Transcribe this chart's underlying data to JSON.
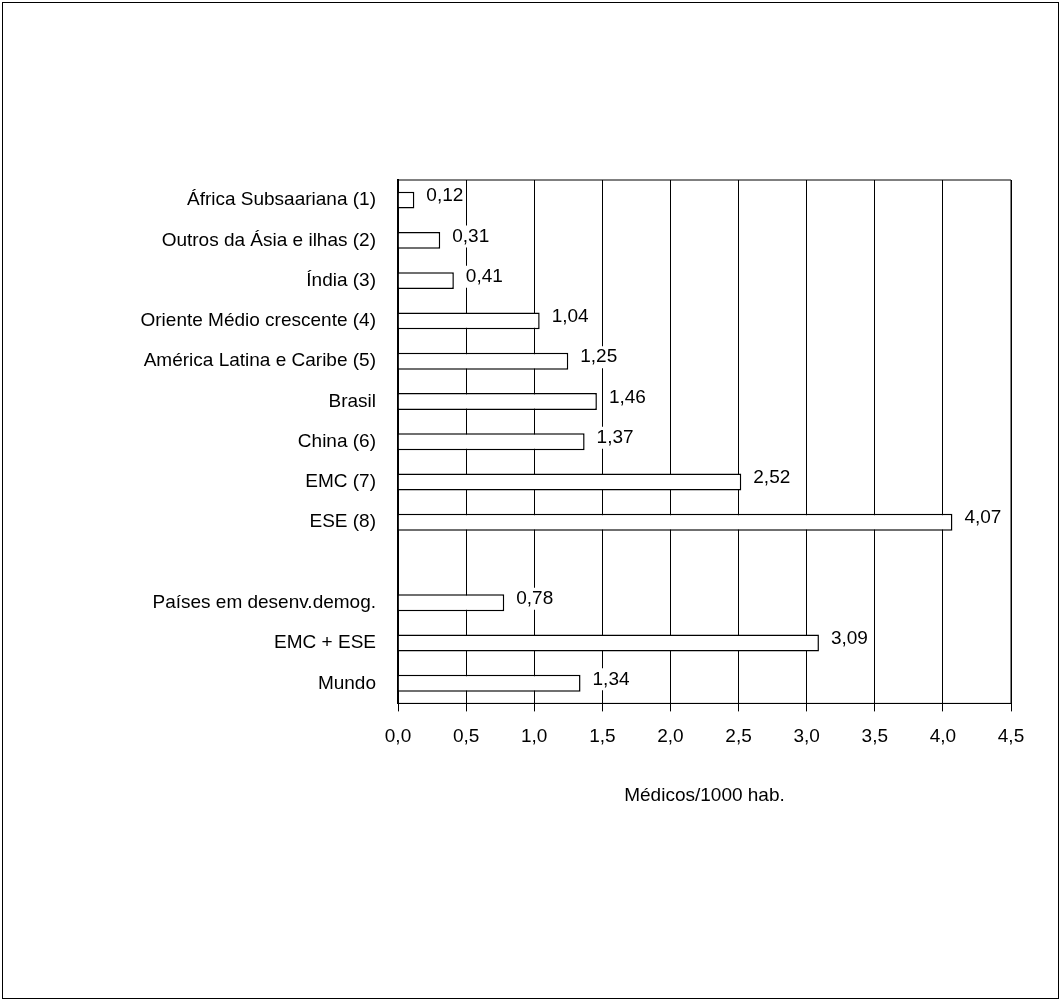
{
  "chart_data": {
    "type": "bar",
    "orientation": "horizontal",
    "xlabel": "Médicos/1000 hab.",
    "categories": [
      "África Subsaariana (1)",
      "Outros da Ásia e ilhas (2)",
      "Índia (3)",
      "Oriente Médio crescente (4)",
      "América Latina e Caribe (5)",
      "Brasil",
      "China (6)",
      "EMC (7)",
      "ESE (8)",
      null,
      "Países em desenv.demog.",
      "EMC + ESE",
      "Mundo"
    ],
    "values": [
      0.12,
      0.31,
      0.41,
      1.04,
      1.25,
      1.46,
      1.37,
      2.52,
      4.07,
      null,
      0.78,
      3.09,
      1.34
    ],
    "value_labels": [
      "0,12",
      "0,31",
      "0,41",
      "1,04",
      "1,25",
      "1,46",
      "1,37",
      "2,52",
      "4,07",
      null,
      "0,78",
      "3,09",
      "1,34"
    ],
    "color": "#ffffff",
    "xlim": [
      0,
      4.5
    ],
    "xticks": [
      {
        "value": 0,
        "label": "0,0"
      },
      {
        "value": 0.5,
        "label": "0,5"
      },
      {
        "value": 1,
        "label": "1,0"
      },
      {
        "value": 1.5,
        "label": "1,5"
      },
      {
        "value": 2,
        "label": "2,0"
      },
      {
        "value": 2.5,
        "label": "2,5"
      },
      {
        "value": 3,
        "label": "3,0"
      },
      {
        "value": 3.5,
        "label": "3,5"
      },
      {
        "value": 4,
        "label": "4,0"
      },
      {
        "value": 4.5,
        "label": "4,5"
      }
    ],
    "grid": "x",
    "legend": false
  }
}
